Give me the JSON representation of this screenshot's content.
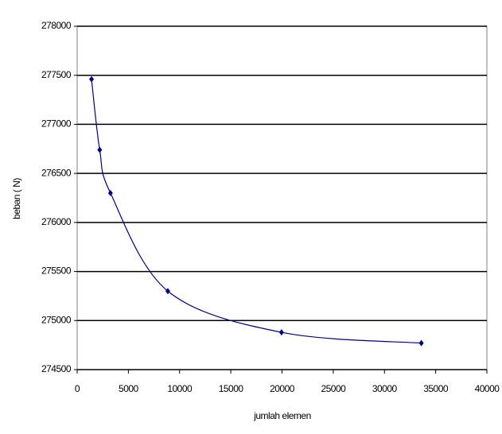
{
  "chart_data": {
    "type": "line",
    "xlabel": "jumlah elemen",
    "ylabel": "beban ( N)",
    "x": [
      1400,
      2200,
      3250,
      8850,
      19950,
      33600
    ],
    "series": [
      {
        "color": "#000080",
        "values": [
          277460,
          276740,
          276300,
          275300,
          274880,
          274770
        ]
      }
    ],
    "xlim": [
      0,
      40000
    ],
    "xticks": [
      0,
      5000,
      10000,
      15000,
      20000,
      25000,
      30000,
      35000,
      40000
    ],
    "ylim": [
      274500,
      278000
    ],
    "yticks": [
      274500,
      275000,
      275500,
      276000,
      276500,
      277000,
      277500,
      278000
    ],
    "grid": true
  }
}
